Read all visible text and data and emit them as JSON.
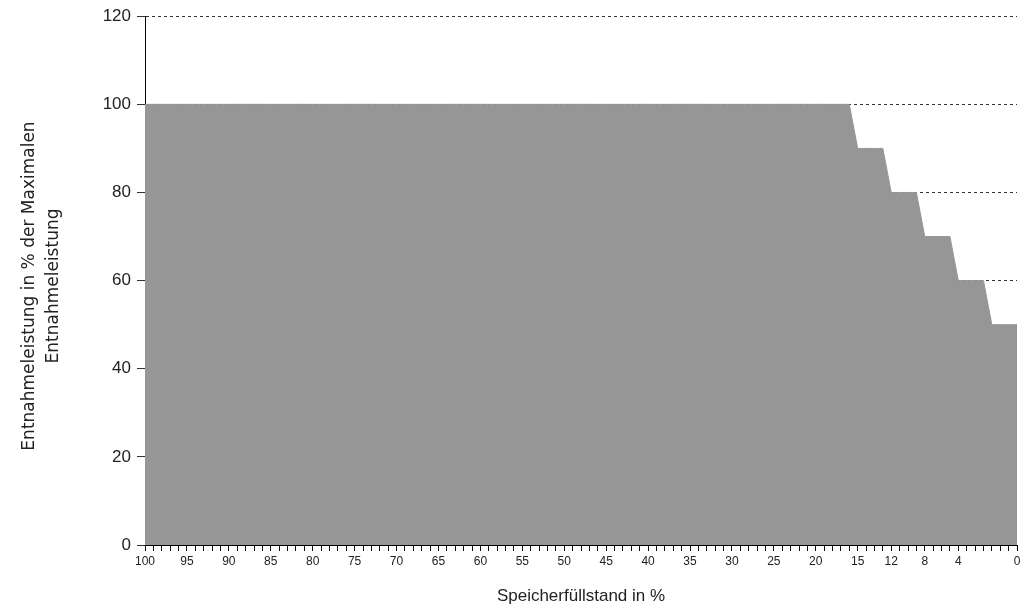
{
  "chart_data": {
    "type": "area",
    "xlabel": "Speicherfüllstand in %",
    "ylabel": "Entnahmeleistung in % der Maximalen Entnahmeleistung",
    "categories": [
      "100",
      null,
      null,
      null,
      null,
      "95",
      null,
      null,
      null,
      null,
      "90",
      null,
      null,
      null,
      null,
      "85",
      null,
      null,
      null,
      null,
      "80",
      null,
      null,
      null,
      null,
      "75",
      null,
      null,
      null,
      null,
      "70",
      null,
      null,
      null,
      null,
      "65",
      null,
      null,
      null,
      null,
      "60",
      null,
      null,
      null,
      null,
      "55",
      null,
      null,
      null,
      null,
      "50",
      null,
      null,
      null,
      null,
      "45",
      null,
      null,
      null,
      null,
      "40",
      null,
      null,
      null,
      null,
      "35",
      null,
      null,
      null,
      null,
      "30",
      null,
      null,
      null,
      null,
      "25",
      null,
      null,
      null,
      null,
      "20",
      null,
      null,
      null,
      null,
      "15",
      null,
      null,
      null,
      "12",
      null,
      null,
      null,
      "8",
      null,
      null,
      null,
      "4",
      null,
      null,
      null,
      null,
      null,
      null,
      "0"
    ],
    "values": [
      100,
      100,
      100,
      100,
      100,
      100,
      100,
      100,
      100,
      100,
      100,
      100,
      100,
      100,
      100,
      100,
      100,
      100,
      100,
      100,
      100,
      100,
      100,
      100,
      100,
      100,
      100,
      100,
      100,
      100,
      100,
      100,
      100,
      100,
      100,
      100,
      100,
      100,
      100,
      100,
      100,
      100,
      100,
      100,
      100,
      100,
      100,
      100,
      100,
      100,
      100,
      100,
      100,
      100,
      100,
      100,
      100,
      100,
      100,
      100,
      100,
      100,
      100,
      100,
      100,
      100,
      100,
      100,
      100,
      100,
      100,
      100,
      100,
      100,
      100,
      100,
      100,
      100,
      100,
      100,
      100,
      100,
      100,
      100,
      100,
      90,
      90,
      90,
      90,
      80,
      80,
      80,
      80,
      70,
      70,
      70,
      70,
      60,
      60,
      60,
      60,
      50,
      50,
      50,
      50
    ],
    "color": "#969696",
    "ylim": [
      0,
      120
    ],
    "yticks": [
      0,
      20,
      40,
      60,
      80,
      100,
      120
    ],
    "grid": "y",
    "legend": false
  }
}
